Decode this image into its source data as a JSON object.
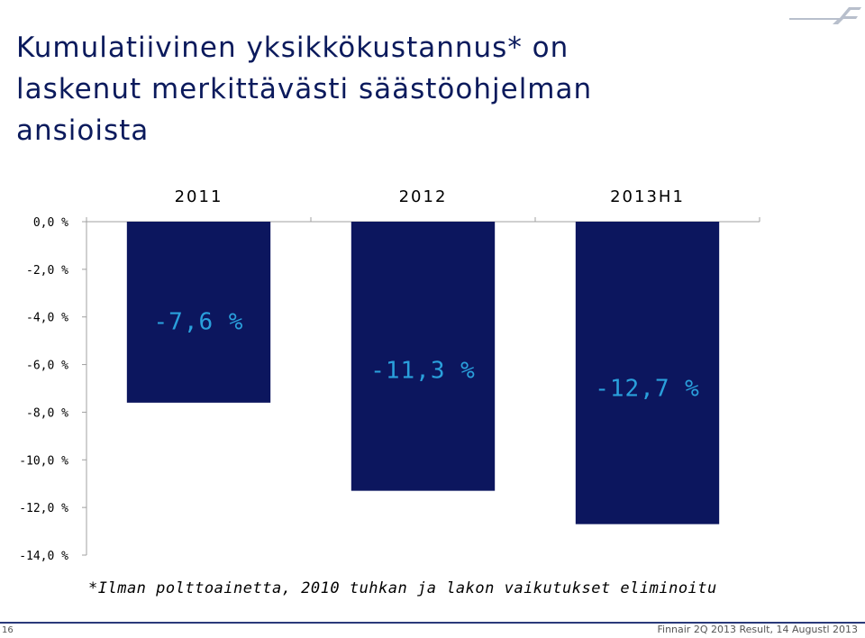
{
  "page": {
    "title_lines": [
      "Kumulatiivinen yksikkökustannus* on",
      "laskenut merkittävästi säästöohjelman",
      "ansioista"
    ],
    "footnote": "*Ilman polttoainetta, 2010 tuhkan ja lakon vaikutukset eliminoitu",
    "page_number": "16",
    "footer_text": "Finnair 2Q 2013 Result, 14 Augustl 2013"
  },
  "colors": {
    "bar": "#0c165e",
    "data_label": "#2aa0dc",
    "title": "#0b1a5c"
  },
  "chart_data": {
    "type": "bar",
    "categories": [
      "2011",
      "2012",
      "2013H1"
    ],
    "values": [
      -7.6,
      -11.3,
      -12.7
    ],
    "data_labels": [
      "-7,6 %",
      "-11,3 %",
      "-12,7 %"
    ],
    "title": "",
    "xlabel": "",
    "ylabel": "",
    "ylim": [
      -14,
      0
    ],
    "y_ticks": [
      0,
      -2,
      -4,
      -6,
      -8,
      -10,
      -12,
      -14
    ],
    "y_tick_labels": [
      "0,0 %",
      "-2,0 %",
      "-4,0 %",
      "-6,0 %",
      "-8,0 %",
      "-10,0 %",
      "-12,0 %",
      "-14,0 %"
    ],
    "x_axis_position": "top",
    "grid": false,
    "legend": "none"
  }
}
